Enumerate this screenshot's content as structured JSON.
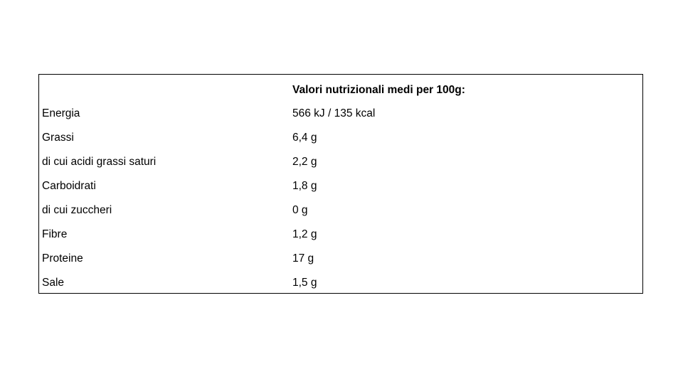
{
  "table": {
    "header": "Valori nutrizionali medi per 100g:",
    "rows": [
      [
        "Energia",
        "566 kJ / 135 kcal"
      ],
      [
        "Grassi",
        "6,4 g"
      ],
      [
        "di cui acidi grassi saturi",
        "2,2 g"
      ],
      [
        "Carboidrati",
        "1,8 g"
      ],
      [
        "di cui zuccheri",
        "0 g"
      ],
      [
        "Fibre",
        "1,2 g"
      ],
      [
        "Proteine",
        "17 g"
      ],
      [
        "Sale",
        "1,5 g"
      ]
    ]
  }
}
